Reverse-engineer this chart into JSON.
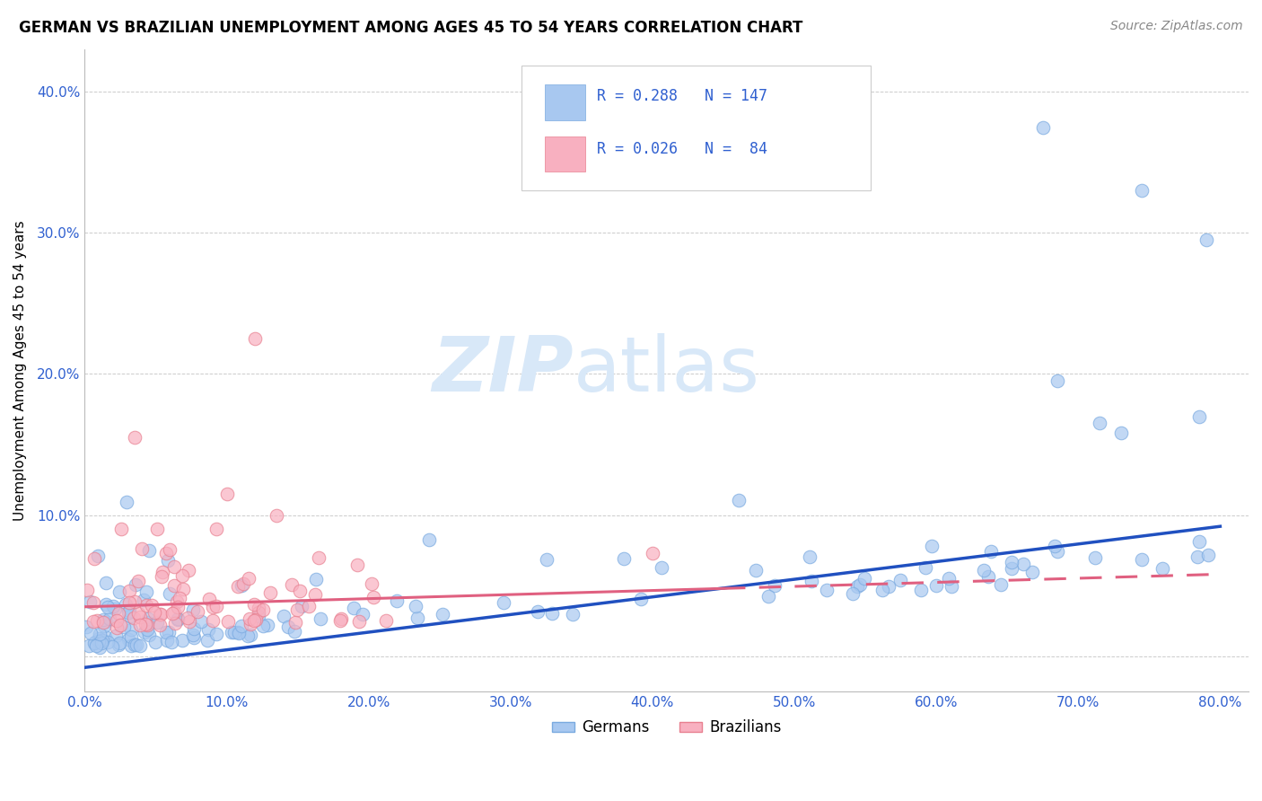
{
  "title": "GERMAN VS BRAZILIAN UNEMPLOYMENT AMONG AGES 45 TO 54 YEARS CORRELATION CHART",
  "source": "Source: ZipAtlas.com",
  "ylabel": "Unemployment Among Ages 45 to 54 years",
  "xlim": [
    0.0,
    0.82
  ],
  "ylim": [
    -0.025,
    0.43
  ],
  "yticks": [
    0.0,
    0.1,
    0.2,
    0.3,
    0.4
  ],
  "xticks": [
    0.0,
    0.1,
    0.2,
    0.3,
    0.4,
    0.5,
    0.6,
    0.7,
    0.8
  ],
  "german_color": "#a8c8f0",
  "german_edge_color": "#7aaae0",
  "brazilian_color": "#f8b0c0",
  "brazilian_edge_color": "#e88090",
  "german_line_color": "#2050c0",
  "brazilian_line_color": "#e06080",
  "watermark_zip": "ZIP",
  "watermark_atlas": "atlas",
  "watermark_color": "#d8e8f8",
  "R_german": 0.288,
  "N_german": 147,
  "R_brazilian": 0.026,
  "N_brazilian": 84,
  "legend_color": "#3060d0",
  "legend_label1": "Germans",
  "legend_label2": "Brazilians",
  "title_fontsize": 12,
  "axis_label_fontsize": 11,
  "tick_fontsize": 11,
  "source_fontsize": 10,
  "tick_color": "#3060d0"
}
